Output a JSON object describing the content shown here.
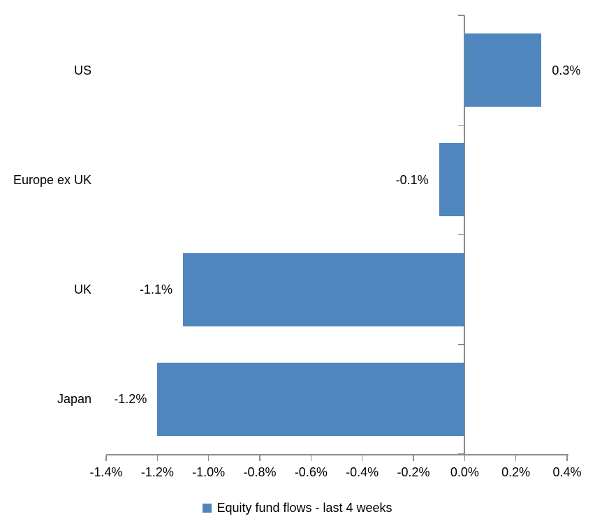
{
  "chart_data": {
    "type": "bar",
    "orientation": "horizontal",
    "title": "",
    "xlabel": "",
    "ylabel": "",
    "categories": [
      "US",
      "Europe ex UK",
      "UK",
      "Japan"
    ],
    "series": [
      {
        "name": "Equity fund flows - last 4 weeks",
        "values": [
          0.3,
          -0.1,
          -1.1,
          -1.2
        ],
        "value_labels": [
          "0.3%",
          "-0.1%",
          "-1.1%",
          "-1.2%"
        ]
      }
    ],
    "xlim": [
      -1.4,
      0.4
    ],
    "x_tick_step": 0.2,
    "x_tick_labels": [
      "-1.4%",
      "-1.2%",
      "-1.0%",
      "-0.8%",
      "-0.6%",
      "-0.4%",
      "-0.2%",
      "0.0%",
      "0.2%",
      "0.4%"
    ],
    "grid": false,
    "legend_position": "bottom",
    "colors": {
      "bar": "#4F86BE",
      "axis": "#8C8C8C",
      "text": "#000000",
      "background": "#FFFFFF"
    }
  },
  "legend": {
    "label": "Equity fund flows - last 4 weeks"
  }
}
